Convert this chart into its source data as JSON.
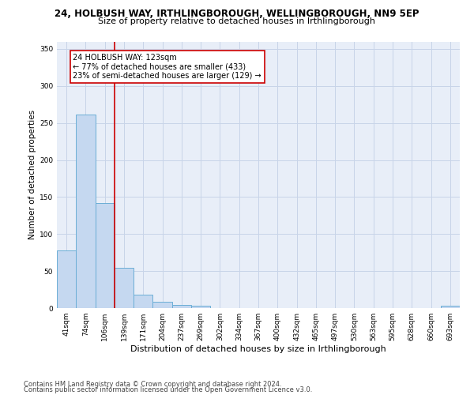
{
  "title": "24, HOLBUSH WAY, IRTHLINGBOROUGH, WELLINGBOROUGH, NN9 5EP",
  "subtitle": "Size of property relative to detached houses in Irthlingborough",
  "xlabel": "Distribution of detached houses by size in Irthlingborough",
  "ylabel": "Number of detached properties",
  "footer1": "Contains HM Land Registry data © Crown copyright and database right 2024.",
  "footer2": "Contains public sector information licensed under the Open Government Licence v3.0.",
  "categories": [
    "41sqm",
    "74sqm",
    "106sqm",
    "139sqm",
    "171sqm",
    "204sqm",
    "237sqm",
    "269sqm",
    "302sqm",
    "334sqm",
    "367sqm",
    "400sqm",
    "432sqm",
    "465sqm",
    "497sqm",
    "530sqm",
    "563sqm",
    "595sqm",
    "628sqm",
    "660sqm",
    "693sqm"
  ],
  "values": [
    78,
    261,
    142,
    54,
    18,
    9,
    4,
    3,
    0,
    0,
    0,
    0,
    0,
    0,
    0,
    0,
    0,
    0,
    0,
    0,
    3
  ],
  "bar_color": "#c5d8f0",
  "bar_edge_color": "#6baed6",
  "grid_color": "#c8d4e8",
  "bg_color": "#e8eef8",
  "annotation_text": "24 HOLBUSH WAY: 123sqm\n← 77% of detached houses are smaller (433)\n23% of semi-detached houses are larger (129) →",
  "vline_color": "#cc0000",
  "vline_pos": 2.5,
  "annotation_box_color": "#ffffff",
  "annotation_box_edge": "#cc0000",
  "ylim": [
    0,
    360
  ],
  "yticks": [
    0,
    50,
    100,
    150,
    200,
    250,
    300,
    350
  ],
  "title_fontsize": 8.5,
  "subtitle_fontsize": 8,
  "tick_fontsize": 6.5,
  "ylabel_fontsize": 7.5,
  "xlabel_fontsize": 8,
  "annotation_fontsize": 7,
  "footer_fontsize": 6
}
